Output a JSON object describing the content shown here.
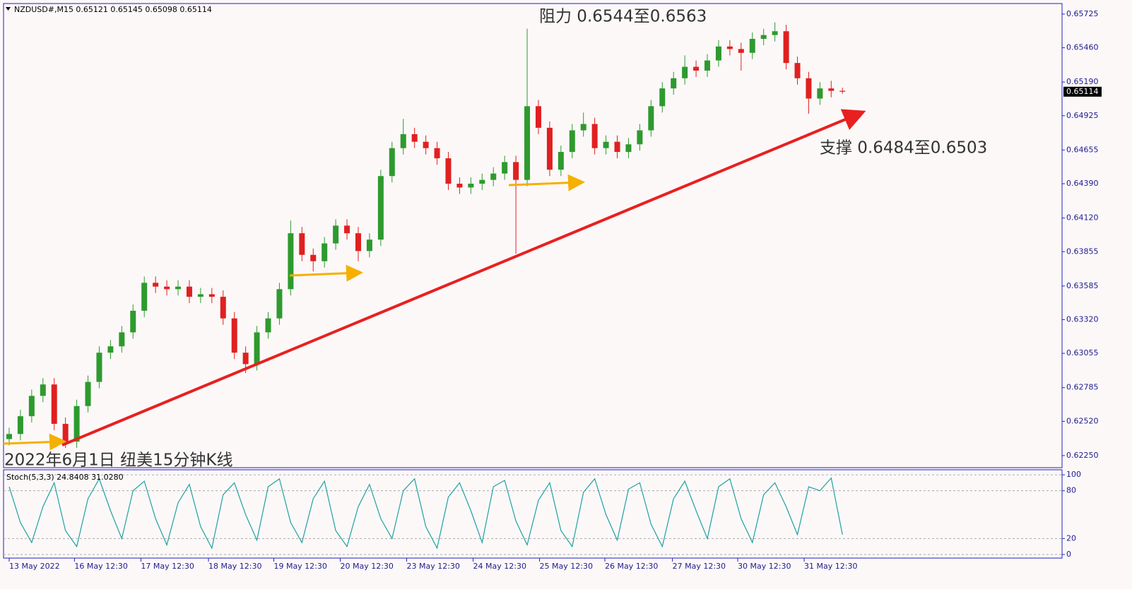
{
  "chart_data": [
    {
      "type": "candlestick",
      "header": "NZDUSD#,M15  0.65121 0.65145 0.65098 0.65114",
      "last_price": 0.65114,
      "annotations": [
        "阻力 0.6544至0.6563",
        "支撑 0.6484至0.6503",
        "2022年6月1日 纽美15分钟K线"
      ],
      "up_color": "#2e9a2e",
      "down_color": "#e02020",
      "xlim": [
        -0.5,
        93.5
      ],
      "xticks": [
        {
          "value": 0,
          "label": "13 May 2022"
        },
        {
          "value": 5.8,
          "label": "16 May 12:30"
        },
        {
          "value": 11.7,
          "label": "17 May 12:30"
        },
        {
          "value": 17.7,
          "label": "18 May 12:30"
        },
        {
          "value": 23.5,
          "label": "19 May 12:30"
        },
        {
          "value": 29.4,
          "label": "20 May 12:30"
        },
        {
          "value": 35.3,
          "label": "23 May 12:30"
        },
        {
          "value": 41.2,
          "label": "24 May 12:30"
        },
        {
          "value": 47.1,
          "label": "25 May 12:30"
        },
        {
          "value": 52.9,
          "label": "26 May 12:30"
        },
        {
          "value": 58.9,
          "label": "27 May 12:30"
        },
        {
          "value": 64.7,
          "label": "30 May 12:30"
        },
        {
          "value": 70.6,
          "label": "31 May 12:30"
        }
      ],
      "ylim": [
        0.62155,
        0.65808
      ],
      "yticks": [
        0.65725,
        {
          "value": 0.6546,
          "label": "0.65460"
        },
        {
          "value": 0.6519,
          "label": "0.65190"
        },
        0.64925,
        0.64655,
        {
          "value": 0.6439,
          "label": "0.64390"
        },
        {
          "value": 0.6412,
          "label": "0.64120"
        },
        0.63855,
        0.63585,
        {
          "value": 0.6332,
          "label": "0.63320"
        },
        0.63055,
        0.62785,
        {
          "value": 0.6252,
          "label": "0.62520"
        },
        {
          "value": 0.6225,
          "label": "0.62250"
        }
      ],
      "open": [
        0.6238,
        0.6242,
        0.6256,
        0.6272,
        0.6281,
        0.625,
        0.6236,
        0.6264,
        0.6283,
        0.6306,
        0.6311,
        0.6322,
        0.6339,
        0.6361,
        0.6358,
        0.6356,
        0.6358,
        0.635,
        0.6352,
        0.635,
        0.6333,
        0.6306,
        0.6297,
        0.6322,
        0.6333,
        0.6356,
        0.64,
        0.6383,
        0.6378,
        0.6392,
        0.6406,
        0.64,
        0.6386,
        0.6395,
        0.6445,
        0.6467,
        0.6478,
        0.6472,
        0.6467,
        0.6459,
        0.6439,
        0.6436,
        0.6439,
        0.6442,
        0.6447,
        0.6456,
        0.6442,
        0.65,
        0.6483,
        0.645,
        0.6464,
        0.6481,
        0.6486,
        0.6467,
        0.6472,
        0.6464,
        0.647,
        0.6481,
        0.65,
        0.6514,
        0.6522,
        0.6531,
        0.6528,
        0.6536,
        0.6547,
        0.6545,
        0.6542,
        0.6553,
        0.6556,
        0.6559,
        0.6534,
        0.6522,
        0.6506,
        0.6514,
        0.65121
      ],
      "high": [
        0.6247,
        0.6261,
        0.6277,
        0.6286,
        0.6286,
        0.6255,
        0.6269,
        0.6288,
        0.6311,
        0.6316,
        0.6327,
        0.6344,
        0.6366,
        0.6366,
        0.6363,
        0.6363,
        0.6363,
        0.6357,
        0.6357,
        0.6355,
        0.6338,
        0.6311,
        0.6327,
        0.6338,
        0.6361,
        0.641,
        0.6405,
        0.6388,
        0.6397,
        0.6411,
        0.6411,
        0.6405,
        0.64,
        0.645,
        0.6472,
        0.649,
        0.6483,
        0.6477,
        0.6472,
        0.6464,
        0.6444,
        0.6444,
        0.6447,
        0.6452,
        0.6461,
        0.6461,
        0.6561,
        0.6505,
        0.6488,
        0.6469,
        0.6486,
        0.6495,
        0.6491,
        0.6477,
        0.6477,
        0.6475,
        0.6486,
        0.6505,
        0.6519,
        0.6527,
        0.654,
        0.6536,
        0.6541,
        0.6552,
        0.6552,
        0.655,
        0.6558,
        0.6561,
        0.6566,
        0.6564,
        0.6539,
        0.6527,
        0.6519,
        0.652,
        0.65145
      ],
      "low": [
        0.6233,
        0.6237,
        0.6251,
        0.6267,
        0.6245,
        0.6231,
        0.6231,
        0.6259,
        0.6278,
        0.6301,
        0.6306,
        0.6317,
        0.6334,
        0.6353,
        0.6351,
        0.6351,
        0.6345,
        0.6345,
        0.6345,
        0.6328,
        0.6301,
        0.629,
        0.6292,
        0.6317,
        0.6328,
        0.6351,
        0.6378,
        0.637,
        0.6373,
        0.6387,
        0.6395,
        0.6378,
        0.6381,
        0.639,
        0.644,
        0.6462,
        0.6467,
        0.6462,
        0.6454,
        0.6434,
        0.6431,
        0.6431,
        0.6434,
        0.6437,
        0.6442,
        0.6384,
        0.6437,
        0.6478,
        0.6445,
        0.6445,
        0.6459,
        0.6476,
        0.6462,
        0.6462,
        0.6459,
        0.6459,
        0.6465,
        0.6476,
        0.6495,
        0.6509,
        0.6517,
        0.6523,
        0.6523,
        0.6531,
        0.654,
        0.6528,
        0.6537,
        0.6548,
        0.6551,
        0.6529,
        0.6517,
        0.6494,
        0.6501,
        0.6507,
        0.65098
      ],
      "close": [
        0.6242,
        0.6256,
        0.6272,
        0.6281,
        0.625,
        0.6236,
        0.6264,
        0.6283,
        0.6306,
        0.6311,
        0.6322,
        0.6339,
        0.6361,
        0.6358,
        0.6356,
        0.6358,
        0.635,
        0.6352,
        0.635,
        0.6333,
        0.6306,
        0.6297,
        0.6322,
        0.6333,
        0.6356,
        0.64,
        0.6383,
        0.6378,
        0.6392,
        0.6406,
        0.64,
        0.6386,
        0.6395,
        0.6445,
        0.6467,
        0.6478,
        0.6472,
        0.6467,
        0.6459,
        0.6439,
        0.6436,
        0.6439,
        0.6442,
        0.6447,
        0.6456,
        0.6442,
        0.65,
        0.6483,
        0.645,
        0.6464,
        0.6481,
        0.6486,
        0.6467,
        0.6472,
        0.6464,
        0.647,
        0.6481,
        0.65,
        0.6514,
        0.6522,
        0.6531,
        0.6528,
        0.6536,
        0.6547,
        0.6545,
        0.6542,
        0.6553,
        0.6556,
        0.6559,
        0.6534,
        0.6522,
        0.6506,
        0.6514,
        0.65121,
        0.65114
      ]
    },
    {
      "type": "line",
      "label": "Stoch(5,3,3) 24.8408 31.0280",
      "color": "#20a0a0",
      "xlim": [
        -0.5,
        93.5
      ],
      "ylim": [
        -4.5,
        106.3
      ],
      "yticks": [
        100,
        80,
        20,
        0
      ],
      "grid": true,
      "values": [
        85,
        40,
        15,
        60,
        90,
        30,
        10,
        70,
        95,
        55,
        20,
        80,
        92,
        45,
        12,
        65,
        88,
        35,
        8,
        75,
        90,
        50,
        18,
        85,
        95,
        40,
        15,
        70,
        92,
        30,
        10,
        60,
        88,
        45,
        20,
        80,
        95,
        35,
        8,
        72,
        90,
        55,
        15,
        85,
        93,
        42,
        12,
        68,
        90,
        30,
        10,
        78,
        95,
        50,
        18,
        82,
        90,
        38,
        10,
        70,
        92,
        55,
        20,
        85,
        95,
        45,
        15,
        75,
        90,
        60,
        25,
        85,
        80,
        96,
        24.8408
      ]
    }
  ]
}
